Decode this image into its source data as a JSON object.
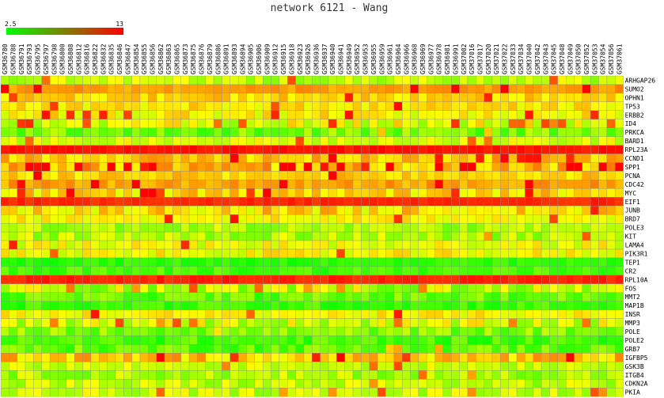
{
  "chart_data": {
    "type": "heatmap",
    "title": "network 6121 - Wang",
    "color_scale": {
      "min": 2.5,
      "max": 13,
      "min_label": "2.5",
      "max_label": "13",
      "low_color": "#00ff00",
      "high_color": "#ff0000"
    },
    "columns": [
      "GSM36780",
      "GSM36788",
      "GSM36791",
      "GSM36793",
      "GSM36795",
      "GSM36797",
      "GSM36798",
      "GSM36800",
      "GSM36808",
      "GSM36812",
      "GSM36816",
      "GSM36822",
      "GSM36832",
      "GSM36835",
      "GSM36846",
      "GSM36847",
      "GSM36854",
      "GSM36855",
      "GSM36856",
      "GSM36862",
      "GSM36863",
      "GSM36865",
      "GSM36873",
      "GSM36875",
      "GSM36876",
      "GSM36879",
      "GSM36886",
      "GSM36891",
      "GSM36893",
      "GSM36894",
      "GSM36905",
      "GSM36906",
      "GSM36909",
      "GSM36912",
      "GSM36915",
      "GSM36918",
      "GSM36923",
      "GSM36926",
      "GSM36936",
      "GSM36937",
      "GSM36940",
      "GSM36941",
      "GSM36949",
      "GSM36952",
      "GSM36953",
      "GSM36955",
      "GSM36959",
      "GSM36961",
      "GSM36964",
      "GSM36966",
      "GSM36968",
      "GSM36969",
      "GSM36977",
      "GSM36978",
      "GSM36981",
      "GSM36991",
      "GSM37002",
      "GSM37016",
      "GSM37017",
      "GSM37020",
      "GSM37021",
      "GSM37022",
      "GSM37033",
      "GSM37034",
      "GSM37040",
      "GSM37042",
      "GSM37043",
      "GSM37045",
      "GSM37048",
      "GSM37049",
      "GSM37050",
      "GSM37052",
      "GSM37053",
      "GSM37054",
      "GSM37056",
      "GSM37061"
    ],
    "rows": [
      {
        "gene": "ARHGAP26",
        "level": 6.5,
        "spread": 1.4,
        "hot": 0.03
      },
      {
        "gene": "SUMO2",
        "level": 9.8,
        "spread": 0.6,
        "hot": 0.05
      },
      {
        "gene": "OPHN1",
        "level": 8.6,
        "spread": 1.0,
        "hot": 0.06
      },
      {
        "gene": "TP53",
        "level": 8.2,
        "spread": 1.0,
        "hot": 0.04
      },
      {
        "gene": "ERBB2",
        "level": 7.8,
        "spread": 1.3,
        "hot": 0.15
      },
      {
        "gene": "ID4",
        "level": 7.2,
        "spread": 1.8,
        "hot": 0.12
      },
      {
        "gene": "PRKCA",
        "level": 5.0,
        "spread": 1.5,
        "hot": 0.02
      },
      {
        "gene": "BARD1",
        "level": 7.0,
        "spread": 1.2,
        "hot": 0.03
      },
      {
        "gene": "RPL23A",
        "level": 12.6,
        "spread": 0.3,
        "hot": 0.0
      },
      {
        "gene": "CCND1",
        "level": 9.0,
        "spread": 1.2,
        "hot": 0.08
      },
      {
        "gene": "SPP1",
        "level": 9.2,
        "spread": 1.6,
        "hot": 0.2
      },
      {
        "gene": "PCNA",
        "level": 8.6,
        "spread": 1.0,
        "hot": 0.08
      },
      {
        "gene": "CDC42",
        "level": 9.6,
        "spread": 0.8,
        "hot": 0.08
      },
      {
        "gene": "MYC",
        "level": 8.4,
        "spread": 1.3,
        "hot": 0.12
      },
      {
        "gene": "EIF1",
        "level": 12.2,
        "spread": 0.4,
        "hot": 0.0
      },
      {
        "gene": "JUNB",
        "level": 8.4,
        "spread": 1.5,
        "hot": 0.05
      },
      {
        "gene": "BRD7",
        "level": 7.8,
        "spread": 1.0,
        "hot": 0.04
      },
      {
        "gene": "POLE3",
        "level": 6.0,
        "spread": 1.3,
        "hot": 0.02
      },
      {
        "gene": "KIT",
        "level": 6.2,
        "spread": 1.6,
        "hot": 0.03
      },
      {
        "gene": "LAMA4",
        "level": 7.4,
        "spread": 1.3,
        "hot": 0.05
      },
      {
        "gene": "PIK3R1",
        "level": 7.6,
        "spread": 1.2,
        "hot": 0.04
      },
      {
        "gene": "TEP1",
        "level": 3.4,
        "spread": 0.7,
        "hot": 0.0
      },
      {
        "gene": "CR2",
        "level": 4.0,
        "spread": 1.0,
        "hot": 0.0
      },
      {
        "gene": "RPL10A",
        "level": 12.3,
        "spread": 0.4,
        "hot": 0.0
      },
      {
        "gene": "FOS",
        "level": 6.4,
        "spread": 2.0,
        "hot": 0.1
      },
      {
        "gene": "MMT2",
        "level": 4.6,
        "spread": 1.3,
        "hot": 0.0
      },
      {
        "gene": "MAP1B",
        "level": 3.8,
        "spread": 1.0,
        "hot": 0.0
      },
      {
        "gene": "INSR",
        "level": 7.8,
        "spread": 1.0,
        "hot": 0.04
      },
      {
        "gene": "MMP3",
        "level": 6.8,
        "spread": 1.8,
        "hot": 0.06
      },
      {
        "gene": "POLE",
        "level": 5.2,
        "spread": 1.4,
        "hot": 0.02
      },
      {
        "gene": "POLE2",
        "level": 4.0,
        "spread": 1.2,
        "hot": 0.0
      },
      {
        "gene": "GRB7",
        "level": 4.6,
        "spread": 1.4,
        "hot": 0.03
      },
      {
        "gene": "IGFBP5",
        "level": 8.8,
        "spread": 1.5,
        "hot": 0.12
      },
      {
        "gene": "GSK3B",
        "level": 6.8,
        "spread": 1.2,
        "hot": 0.02
      },
      {
        "gene": "ITGB4",
        "level": 6.0,
        "spread": 1.4,
        "hot": 0.03
      },
      {
        "gene": "CDKN2A",
        "level": 6.4,
        "spread": 1.5,
        "hot": 0.04
      },
      {
        "gene": "PKIA",
        "level": 6.6,
        "spread": 1.4,
        "hot": 0.04
      }
    ]
  }
}
